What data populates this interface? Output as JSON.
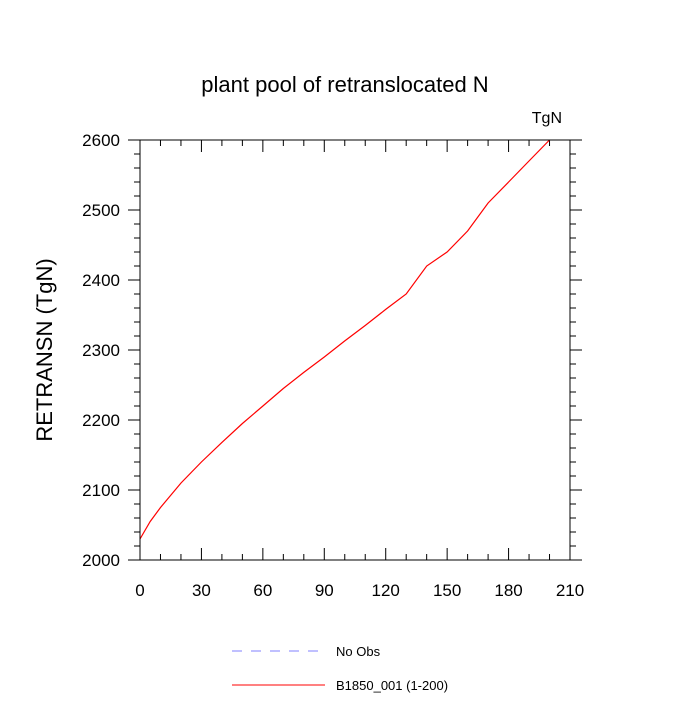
{
  "chart_data": {
    "type": "line",
    "title": "plant pool of retranslocated N",
    "units_label": "TgN",
    "ylabel": "RETRANSN  (TgN)",
    "xlabel": "",
    "xlim": [
      0,
      210
    ],
    "ylim": [
      2000,
      2600
    ],
    "x_ticks": [
      0,
      30,
      60,
      90,
      120,
      150,
      180,
      210
    ],
    "y_ticks": [
      2000,
      2100,
      2200,
      2300,
      2400,
      2500,
      2600
    ],
    "grid": false,
    "legend_position": "bottom",
    "series": [
      {
        "name": "No Obs",
        "color": "#8080ff",
        "dash": "dashed",
        "x": [],
        "y": []
      },
      {
        "name": "B1850_001 (1-200)",
        "color": "#ff0000",
        "dash": "solid",
        "x": [
          0,
          5,
          10,
          20,
          30,
          40,
          50,
          60,
          70,
          80,
          90,
          100,
          110,
          120,
          130,
          140,
          150,
          160,
          170,
          180,
          190,
          200
        ],
        "y": [
          2030,
          2055,
          2075,
          2110,
          2140,
          2168,
          2195,
          2220,
          2245,
          2268,
          2290,
          2313,
          2335,
          2358,
          2380,
          2420,
          2440,
          2470,
          2510,
          2540,
          2570,
          2600
        ]
      }
    ]
  }
}
